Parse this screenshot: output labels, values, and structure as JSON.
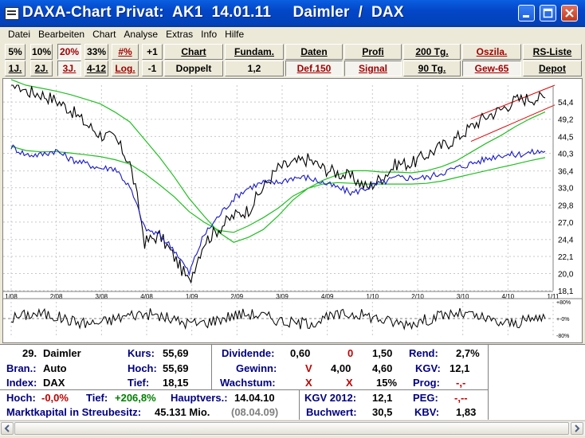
{
  "window": {
    "title": "DAXA-Chart Privat:  AK1  14.01.11     Daimler  /  DAX"
  },
  "menu": [
    "Datei",
    "Bearbeiten",
    "Chart",
    "Analyse",
    "Extras",
    "Info",
    "Hilfe"
  ],
  "toolbar": {
    "row1": [
      "5%",
      "10%",
      "20%",
      "33%",
      "#%",
      "+1",
      "Chart",
      "Fundam.",
      "Daten",
      "Profi",
      "200 Tg.",
      "Oszila.",
      "RS-Liste"
    ],
    "row2": [
      "1J.",
      "2J.",
      "3J.",
      "4-12",
      "Log.",
      "-1",
      "Doppelt",
      "1,2",
      "Def.150",
      "Signal",
      "90 Tg.",
      "Gew-65",
      "Depot"
    ]
  },
  "chart": {
    "y_ticks": [
      "54,4",
      "49,2",
      "44,5",
      "40,3",
      "36,4",
      "33,0",
      "29,8",
      "27,0",
      "24,4",
      "22,1",
      "20,0",
      "18,1"
    ],
    "x_ticks": [
      "1/08",
      "2/08",
      "3/08",
      "4/08",
      "1/09",
      "2/09",
      "3/09",
      "4/09",
      "1/10",
      "2/10",
      "3/10",
      "4/10",
      "1/11"
    ],
    "osc_ticks": [
      "+80%",
      "+-0%",
      "-80%"
    ],
    "colors": {
      "stock": "#000000",
      "index": "#1818c8",
      "ma": "#20c020",
      "channel": "#e00000",
      "grid": "#c8c8c8",
      "midline": "#808080"
    }
  },
  "chart_data": {
    "type": "line",
    "x": [
      "2008-01",
      "2008-02",
      "2008-03",
      "2008-04",
      "2008-05",
      "2008-06",
      "2008-07",
      "2008-08",
      "2008-09",
      "2008-10",
      "2008-11",
      "2008-12",
      "2009-01",
      "2009-02",
      "2009-03",
      "2009-04",
      "2009-05",
      "2009-06",
      "2009-07",
      "2009-08",
      "2009-09",
      "2009-10",
      "2009-11",
      "2009-12",
      "2010-01",
      "2010-02",
      "2010-03",
      "2010-04",
      "2010-05",
      "2010-06",
      "2010-07",
      "2010-08",
      "2010-09",
      "2010-10",
      "2010-11",
      "2010-12",
      "2011-01"
    ],
    "y_scale": "log",
    "ylim": [
      18.1,
      60
    ],
    "series": [
      {
        "name": "Daimler",
        "values": [
          62,
          58,
          57,
          55,
          52,
          48,
          45,
          44,
          38,
          24,
          25,
          22,
          19,
          24,
          26,
          28,
          29,
          33,
          37,
          38,
          39,
          37,
          36,
          35,
          33,
          35,
          38,
          38,
          40,
          42,
          44,
          47,
          50,
          52,
          55,
          55.69,
          55.69
        ]
      },
      {
        "name": "DAX",
        "values": [
          42,
          40,
          40,
          41,
          39,
          38,
          37,
          37,
          33,
          26,
          25,
          23,
          20,
          25,
          28,
          31,
          33,
          34,
          34,
          35,
          35,
          34,
          33,
          32,
          33,
          34,
          35,
          35,
          35,
          36,
          37,
          38,
          39,
          40,
          40,
          40.5,
          40.8
        ]
      }
    ],
    "oscillator": {
      "ylim": [
        -80,
        80
      ],
      "labels": [
        "+80%",
        "+-0%",
        "-80%"
      ]
    }
  },
  "info": {
    "rank": "29.",
    "name": "Daimler",
    "branche_label": "Bran.:",
    "branche": "Auto",
    "index_label": "Index:",
    "index": "DAX",
    "kurs_label": "Kurs:",
    "kurs": "55,69",
    "hoch_label": "Hoch:",
    "hoch": "55,69",
    "tief_label": "Tief:",
    "tief": "18,15",
    "dividende_label": "Dividende:",
    "div1": "0,60",
    "div2": "0",
    "div3": "1,50",
    "rend_label": "Rend:",
    "rend": "2,7%",
    "gewinn_label": "Gewinn:",
    "gew_flag": "V",
    "gew1": "4,00",
    "gew2": "4,60",
    "kgv_label": "KGV:",
    "kgv": "12,1",
    "wachstum_label": "Wachstum:",
    "wach_x1": "X",
    "wach_x2": "X",
    "wach_pct": "15%",
    "prog_label": "Prog:",
    "prog": "-,-",
    "hochpct_label": "Hoch:",
    "hochpct": "-0,0%",
    "tiefpct_label": "Tief:",
    "tiefpct": "+206,8%",
    "hv_label": "Hauptvers.:",
    "hv": "14.04.10",
    "kgv2012_label": "KGV 2012:",
    "kgv2012": "12,1",
    "peg_label": "PEG:",
    "peg": "-,--",
    "mkap_label": "Marktkapital in Streubesitz:",
    "mkap": "45.131 Mio.",
    "mkap_date": "(08.04.09)",
    "buchwert_label": "Buchwert:",
    "buchwert": "30,5",
    "kbv_label": "KBV:",
    "kbv": "1,83"
  }
}
